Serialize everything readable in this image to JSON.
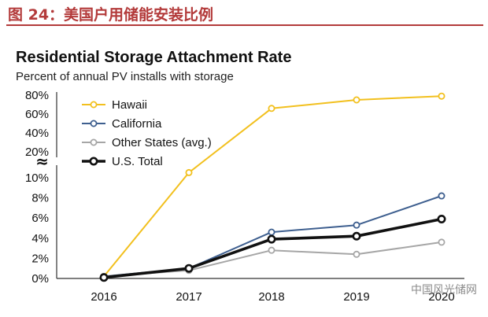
{
  "header": {
    "figure_title": "图 24：美国户用储能安装比例"
  },
  "watermark": "中国风光储网",
  "chart_data": {
    "type": "line",
    "title": "Residential Storage Attachment Rate",
    "subtitle": "Percent of annual PV installs with storage",
    "x": [
      "2016",
      "2017",
      "2018",
      "2019",
      "2020"
    ],
    "y_axis": {
      "broken": true,
      "lower_ticks": [
        "0%",
        "2%",
        "4%",
        "6%",
        "8%",
        "10%"
      ],
      "lower_range": [
        0,
        10
      ],
      "upper_ticks": [
        "20%",
        "40%",
        "60%",
        "80%"
      ],
      "upper_range": [
        20,
        80
      ],
      "break_symbol": "≈"
    },
    "legend_position": "top-left",
    "series": [
      {
        "name": "Hawaii",
        "color": "#f2c01e",
        "values": [
          0.2,
          12,
          66,
          75,
          79
        ]
      },
      {
        "name": "California",
        "color": "#3e5f8f",
        "values": [
          0.2,
          1.0,
          4.6,
          5.3,
          8.2
        ]
      },
      {
        "name": "Other States (avg.)",
        "color": "#a6a6a6",
        "values": [
          0.2,
          0.8,
          2.8,
          2.4,
          3.6
        ]
      },
      {
        "name": "U.S. Total",
        "color": "#111111",
        "values": [
          0.1,
          1.0,
          3.9,
          4.2,
          5.9
        ]
      }
    ]
  }
}
